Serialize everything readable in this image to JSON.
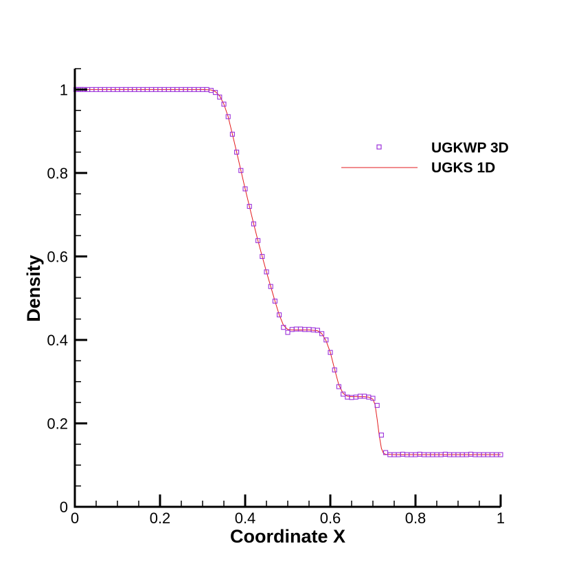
{
  "chart_data": {
    "type": "line",
    "title": "",
    "xlabel": "Coordinate X",
    "ylabel": "Density",
    "xlim": [
      0,
      1
    ],
    "ylim": [
      0,
      1.05
    ],
    "x_ticks": [
      {
        "value": 0,
        "label": "0"
      },
      {
        "value": 0.2,
        "label": "0.2"
      },
      {
        "value": 0.4,
        "label": "0.4"
      },
      {
        "value": 0.6,
        "label": "0.6"
      },
      {
        "value": 0.8,
        "label": "0.8"
      },
      {
        "value": 1,
        "label": "1"
      }
    ],
    "y_ticks": [
      {
        "value": 0,
        "label": "0"
      },
      {
        "value": 0.2,
        "label": "0.2"
      },
      {
        "value": 0.4,
        "label": "0.4"
      },
      {
        "value": 0.6,
        "label": "0.6"
      },
      {
        "value": 0.8,
        "label": "0.8"
      },
      {
        "value": 1,
        "label": "1"
      }
    ],
    "grid": false,
    "legend_position": "top-right",
    "series": [
      {
        "name": "UGKWP 3D",
        "style": "square-markers",
        "color": "#9b30d9",
        "x": [
          0.0025,
          0.0075,
          0.0125,
          0.0175,
          0.0225,
          0.03,
          0.04,
          0.05,
          0.06,
          0.07,
          0.08,
          0.09,
          0.1,
          0.11,
          0.12,
          0.13,
          0.14,
          0.15,
          0.16,
          0.17,
          0.18,
          0.19,
          0.2,
          0.21,
          0.22,
          0.23,
          0.24,
          0.25,
          0.26,
          0.27,
          0.28,
          0.29,
          0.3,
          0.31,
          0.32,
          0.33,
          0.34,
          0.35,
          0.36,
          0.37,
          0.38,
          0.39,
          0.4,
          0.41,
          0.42,
          0.43,
          0.44,
          0.45,
          0.46,
          0.47,
          0.48,
          0.49,
          0.5,
          0.51,
          0.52,
          0.53,
          0.54,
          0.55,
          0.56,
          0.57,
          0.58,
          0.59,
          0.6,
          0.61,
          0.62,
          0.63,
          0.64,
          0.65,
          0.66,
          0.67,
          0.68,
          0.69,
          0.7,
          0.71,
          0.72,
          0.73,
          0.74,
          0.75,
          0.76,
          0.77,
          0.78,
          0.79,
          0.8,
          0.81,
          0.82,
          0.83,
          0.84,
          0.85,
          0.86,
          0.87,
          0.88,
          0.89,
          0.9,
          0.91,
          0.92,
          0.93,
          0.94,
          0.95,
          0.96,
          0.97,
          0.98,
          0.99,
          1.0
        ],
        "y": [
          1.0,
          1.0,
          1.0,
          1.0,
          1.0,
          1.0,
          1.0,
          1.0,
          1.0,
          1.0,
          1.0,
          1.0,
          1.0,
          1.0,
          1.0,
          1.0,
          1.0,
          1.0,
          1.0,
          1.0,
          1.0,
          1.0,
          1.0,
          1.0,
          1.0,
          1.0,
          1.0,
          1.0,
          1.0,
          1.0,
          1.0,
          1.0,
          1.0,
          1.0,
          0.998,
          0.993,
          0.982,
          0.965,
          0.935,
          0.893,
          0.85,
          0.806,
          0.762,
          0.72,
          0.678,
          0.638,
          0.6,
          0.563,
          0.528,
          0.493,
          0.46,
          0.43,
          0.418,
          0.425,
          0.426,
          0.426,
          0.425,
          0.425,
          0.424,
          0.423,
          0.415,
          0.4,
          0.37,
          0.328,
          0.288,
          0.27,
          0.263,
          0.262,
          0.263,
          0.265,
          0.265,
          0.263,
          0.26,
          0.243,
          0.172,
          0.13,
          0.125,
          0.125,
          0.125,
          0.126,
          0.125,
          0.125,
          0.125,
          0.126,
          0.125,
          0.125,
          0.125,
          0.125,
          0.125,
          0.126,
          0.125,
          0.125,
          0.125,
          0.125,
          0.125,
          0.126,
          0.125,
          0.125,
          0.125,
          0.125,
          0.125,
          0.125,
          0.125
        ]
      },
      {
        "name": "UGKS 1D",
        "style": "line",
        "color": "#e31a1c",
        "x": [
          0.0,
          0.3,
          0.32,
          0.33,
          0.34,
          0.35,
          0.36,
          0.37,
          0.38,
          0.39,
          0.4,
          0.41,
          0.42,
          0.43,
          0.44,
          0.45,
          0.46,
          0.47,
          0.48,
          0.49,
          0.5,
          0.51,
          0.52,
          0.55,
          0.57,
          0.58,
          0.59,
          0.6,
          0.61,
          0.62,
          0.63,
          0.64,
          0.65,
          0.68,
          0.69,
          0.7,
          0.705,
          0.71,
          0.715,
          0.72,
          0.725,
          0.73,
          0.75,
          1.0
        ],
        "y": [
          1.0,
          1.0,
          0.999,
          0.995,
          0.985,
          0.965,
          0.935,
          0.893,
          0.85,
          0.806,
          0.762,
          0.72,
          0.678,
          0.638,
          0.6,
          0.563,
          0.528,
          0.493,
          0.46,
          0.435,
          0.425,
          0.424,
          0.424,
          0.424,
          0.422,
          0.415,
          0.398,
          0.37,
          0.33,
          0.292,
          0.272,
          0.265,
          0.264,
          0.264,
          0.263,
          0.258,
          0.245,
          0.21,
          0.17,
          0.14,
          0.128,
          0.126,
          0.125,
          0.125
        ]
      }
    ]
  },
  "colors": {
    "marker": "#9b30d9",
    "line": "#e31a1c",
    "axis": "#000000"
  }
}
